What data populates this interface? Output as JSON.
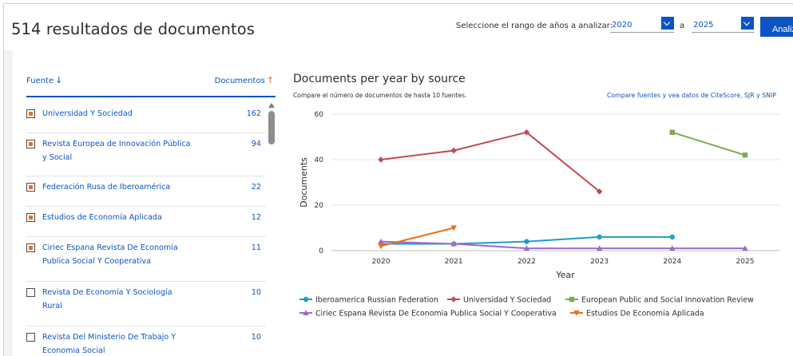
{
  "header": {
    "title": "514 resultados de documentos",
    "range_label": "Seleccione el rango de años a analizar:",
    "year_from": "2020",
    "range_separator": "a",
    "year_to": "2025",
    "analyze_label": "Analiza"
  },
  "table": {
    "col_source": "Fuente",
    "col_docs": "Documentos",
    "rows": [
      {
        "label": "Universidad Y Sociedad",
        "count": "162",
        "checked": true
      },
      {
        "label": "Revista Europea de Innovación Pública y Social",
        "count": "94",
        "checked": true
      },
      {
        "label": "Federación Rusa de Iberoamérica",
        "count": "22",
        "checked": true
      },
      {
        "label": "Estudios de Economía Aplicada",
        "count": "12",
        "checked": true
      },
      {
        "label": "Ciriec Espana Revista De Economia Publica Social Y Cooperativa",
        "count": "11",
        "checked": true
      },
      {
        "label": "Revista De Economía Y Sociología Rural",
        "count": "10",
        "checked": false
      },
      {
        "label": "Revista Del Ministerio De Trabajo Y Economia Social",
        "count": "10",
        "checked": false
      }
    ]
  },
  "chart": {
    "title": "Documents per year by source",
    "subtitle": "Compare el número de documentos de hasta 10 fuentes.",
    "link": "Compare fuentes y vea datos de CiteScore, SJR y SNIP"
  },
  "chart_data": {
    "type": "line",
    "xlabel": "Year",
    "ylabel": "Documents",
    "x": [
      2020,
      2021,
      2022,
      2023,
      2024,
      2025
    ],
    "xticks": [
      "2020",
      "2021",
      "2022",
      "2023",
      "2024",
      "2025"
    ],
    "yticks": [
      "0",
      "20",
      "40",
      "60"
    ],
    "ylim": [
      0,
      60
    ],
    "grid": true,
    "legend_position": "bottom",
    "series": [
      {
        "name": "Iberoamerica Russian Federation",
        "color": "#1e9ec7",
        "marker": "circle",
        "values": [
          3,
          3,
          4,
          6,
          6,
          null
        ]
      },
      {
        "name": "Universidad Y Sociedad",
        "color": "#c44a52",
        "marker": "diamond",
        "values": [
          40,
          44,
          52,
          26,
          null,
          null
        ]
      },
      {
        "name": "European Public and Social Innovation Review",
        "color": "#7fa955",
        "marker": "square",
        "values": [
          null,
          null,
          null,
          null,
          52,
          42
        ]
      },
      {
        "name": "Ciriec Espana Revista De Economia Publica Social Y Cooperativa",
        "color": "#9b6cc9",
        "marker": "triangle",
        "values": [
          4,
          3,
          1,
          1,
          1,
          1
        ]
      },
      {
        "name": "Estudios De Economia Aplicada",
        "color": "#e9711c",
        "marker": "triangle-down",
        "values": [
          2,
          10,
          null,
          null,
          null,
          null
        ]
      }
    ]
  }
}
